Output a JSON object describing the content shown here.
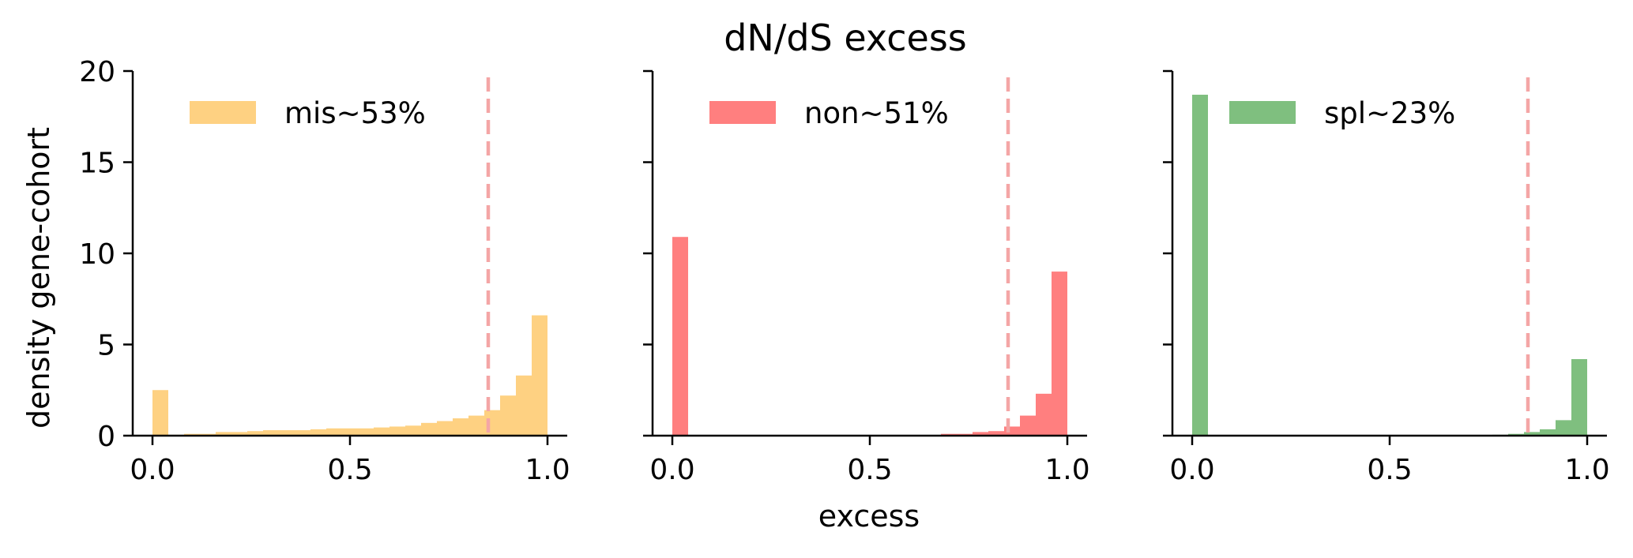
{
  "title": "dN/dS excess",
  "xlabel": "excess",
  "ylabel": "density gene-cohort",
  "chart_data": {
    "type": "histogram",
    "title": "dN/dS excess",
    "xlabel": "excess",
    "ylabel": "density gene-cohort",
    "xlim": [
      -0.05,
      1.05
    ],
    "ylim": [
      0,
      20
    ],
    "xticks": [
      "0.0",
      "0.5",
      "1.0"
    ],
    "yticks": [
      "0",
      "5",
      "10",
      "15",
      "20"
    ],
    "bin_width": 0.04,
    "threshold": 0.85,
    "threshold_color": "#f4a6a6",
    "panels": [
      {
        "name": "mis",
        "legend": "mis~53%",
        "color": "#fdb93f",
        "opacity": 0.65,
        "bins": [
          0.0,
          0.04,
          0.08,
          0.12,
          0.16,
          0.2,
          0.24,
          0.28,
          0.32,
          0.36,
          0.4,
          0.44,
          0.48,
          0.52,
          0.56,
          0.6,
          0.64,
          0.68,
          0.72,
          0.76,
          0.8,
          0.84,
          0.88,
          0.92,
          0.96
        ],
        "values": [
          2.5,
          0.05,
          0.1,
          0.1,
          0.2,
          0.2,
          0.25,
          0.3,
          0.3,
          0.3,
          0.35,
          0.4,
          0.4,
          0.4,
          0.45,
          0.5,
          0.55,
          0.7,
          0.8,
          0.95,
          1.1,
          1.4,
          2.2,
          3.3,
          6.6
        ]
      },
      {
        "name": "non",
        "legend": "non~51%",
        "color": "#ff0000",
        "opacity": 0.5,
        "bins": [
          0.0,
          0.04,
          0.08,
          0.12,
          0.16,
          0.2,
          0.24,
          0.28,
          0.32,
          0.36,
          0.4,
          0.44,
          0.48,
          0.52,
          0.56,
          0.6,
          0.64,
          0.68,
          0.72,
          0.76,
          0.8,
          0.84,
          0.88,
          0.92,
          0.96
        ],
        "values": [
          10.9,
          0,
          0,
          0,
          0,
          0,
          0,
          0,
          0,
          0,
          0,
          0,
          0,
          0,
          0,
          0,
          0,
          0.1,
          0.1,
          0.2,
          0.25,
          0.5,
          1.1,
          2.3,
          9.0
        ]
      },
      {
        "name": "spl",
        "legend": "spl~23%",
        "color": "#008000",
        "opacity": 0.5,
        "bins": [
          0.0,
          0.04,
          0.08,
          0.12,
          0.16,
          0.2,
          0.24,
          0.28,
          0.32,
          0.36,
          0.4,
          0.44,
          0.48,
          0.52,
          0.56,
          0.6,
          0.64,
          0.68,
          0.72,
          0.76,
          0.8,
          0.84,
          0.88,
          0.92,
          0.96
        ],
        "values": [
          18.7,
          0,
          0,
          0,
          0,
          0,
          0,
          0,
          0,
          0,
          0,
          0,
          0,
          0,
          0,
          0,
          0,
          0,
          0,
          0.05,
          0.1,
          0.2,
          0.35,
          0.85,
          4.2
        ]
      }
    ]
  }
}
